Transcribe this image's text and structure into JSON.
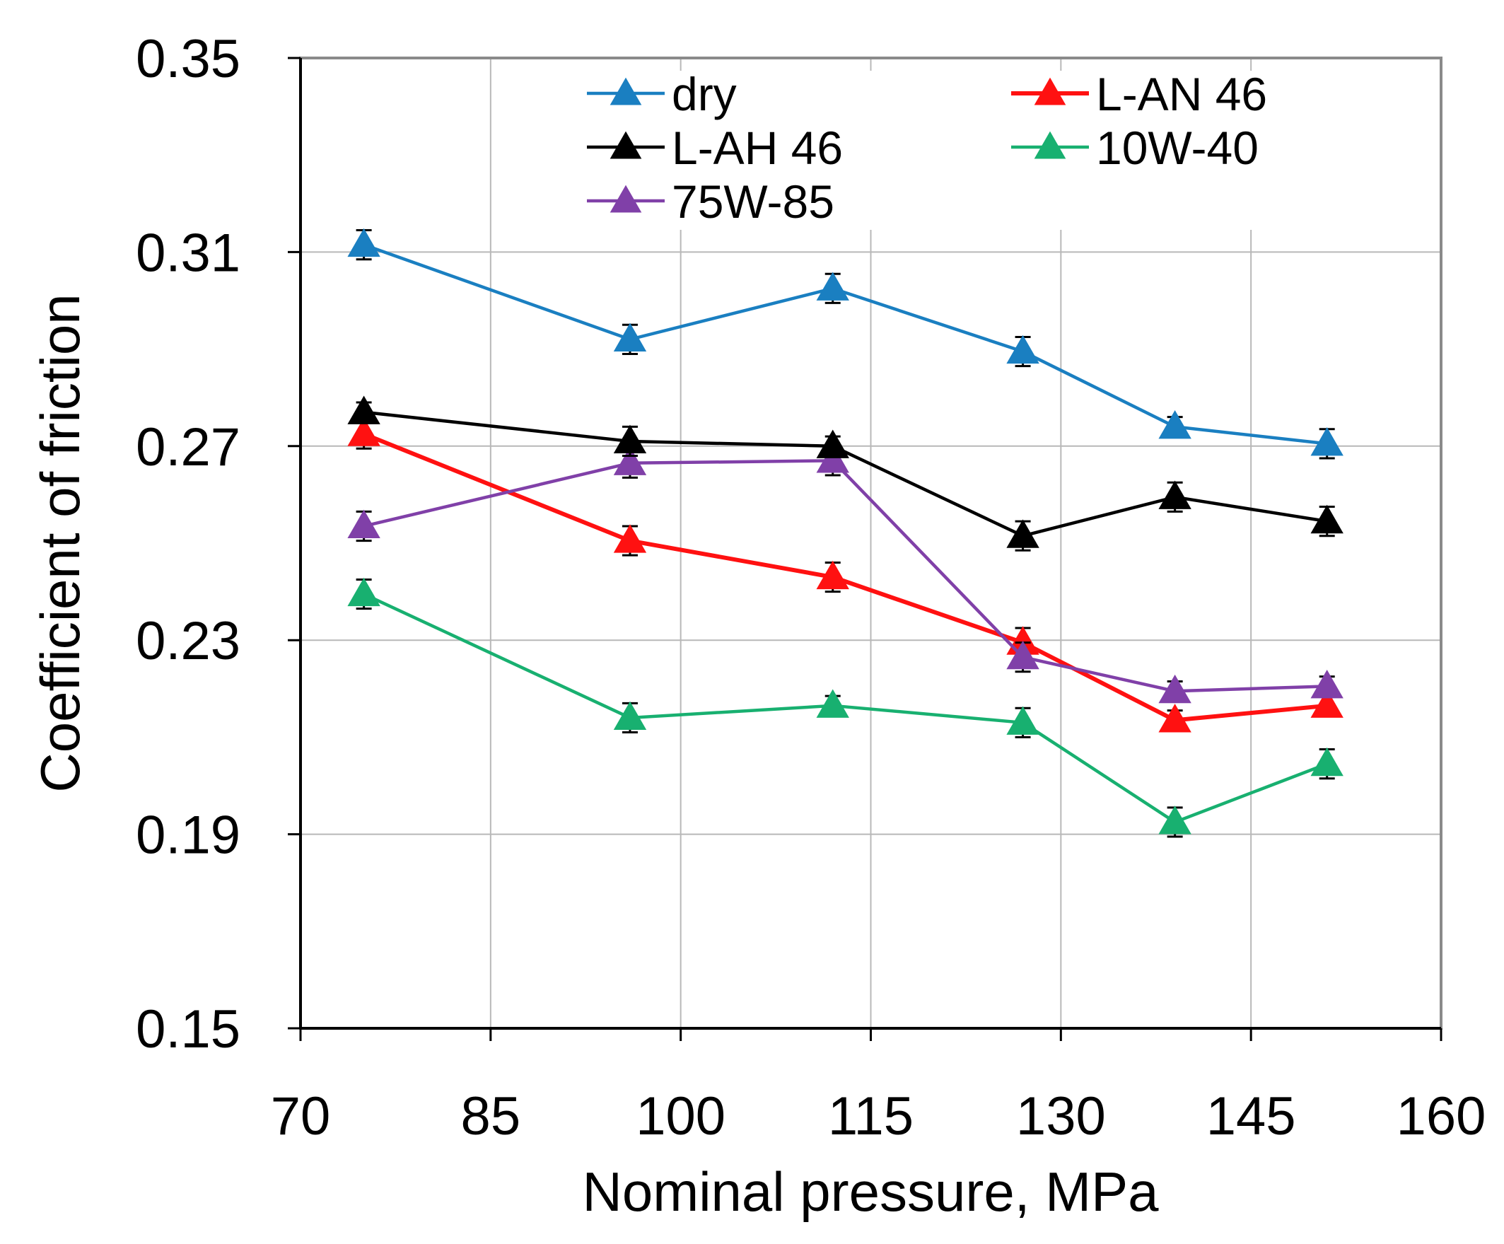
{
  "chart_data": {
    "type": "line",
    "title": "",
    "xlabel": "Nominal pressure, MPa",
    "ylabel": "Coefficient of friction",
    "xlim": [
      70,
      160
    ],
    "ylim": [
      0.15,
      0.35
    ],
    "xticks": [
      70,
      85,
      100,
      115,
      130,
      145,
      160
    ],
    "yticks": [
      0.15,
      0.19,
      0.23,
      0.27,
      0.31,
      0.35
    ],
    "xtick_labels": [
      "70",
      "85",
      "100",
      "115",
      "130",
      "145",
      "160"
    ],
    "ytick_labels": [
      "0.15",
      "0.19",
      "0.23",
      "0.27",
      "0.31",
      "0.35"
    ],
    "grid": true,
    "legend_position": "top",
    "x": [
      75,
      96,
      112,
      127,
      139,
      151
    ],
    "series": [
      {
        "name": "dry",
        "color": "#1a7fc1",
        "values": [
          0.3115,
          0.292,
          0.3025,
          0.2895,
          0.274,
          0.2705
        ],
        "errors": [
          0.003,
          0.003,
          0.003,
          0.003,
          0.002,
          0.003
        ]
      },
      {
        "name": "L-AN 46",
        "color": "#ff1111",
        "values": [
          0.2725,
          0.2505,
          0.243,
          0.2295,
          0.2135,
          0.2165
        ],
        "errors": [
          0.003,
          0.003,
          0.003,
          0.003,
          0.002,
          0.002
        ]
      },
      {
        "name": "L-AH 46",
        "color": "#000000",
        "values": [
          0.277,
          0.271,
          0.27,
          0.2515,
          0.2595,
          0.2545
        ],
        "errors": [
          0.002,
          0.003,
          0.002,
          0.003,
          0.003,
          0.003
        ]
      },
      {
        "name": "10W-40",
        "color": "#18b070",
        "values": [
          0.2395,
          0.214,
          0.2165,
          0.213,
          0.1925,
          0.2045
        ],
        "errors": [
          0.003,
          0.003,
          0.002,
          0.003,
          0.003,
          0.003
        ]
      },
      {
        "name": "75W-85",
        "color": "#8040a8",
        "values": [
          0.2535,
          0.2665,
          0.267,
          0.2265,
          0.2195,
          0.2205
        ],
        "errors": [
          0.003,
          0.003,
          0.003,
          0.003,
          0.002,
          0.002
        ]
      }
    ]
  }
}
